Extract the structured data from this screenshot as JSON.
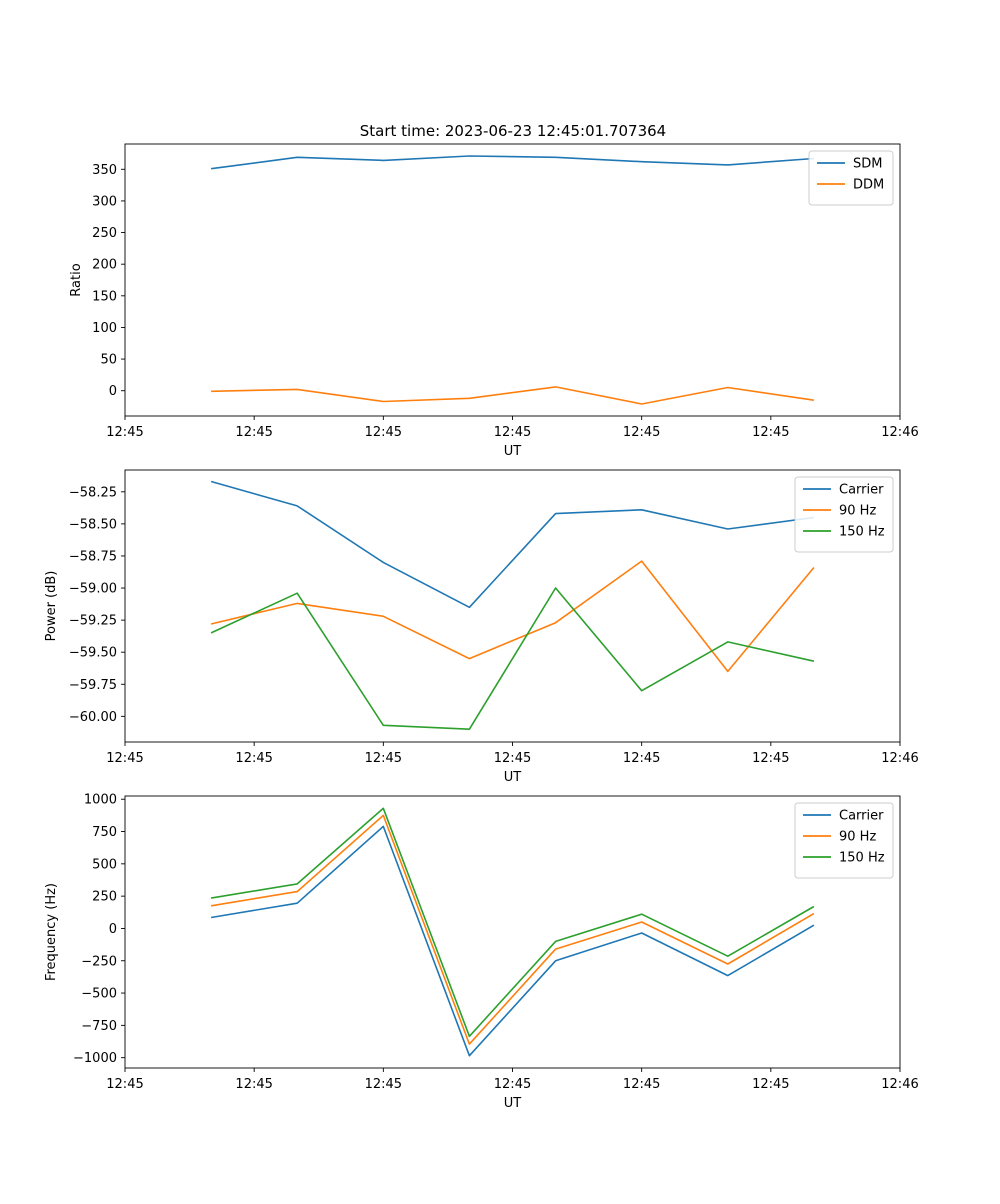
{
  "figure": {
    "title": "Start time: 2023-06-23 12:45:01.707364"
  },
  "chart_data": [
    {
      "type": "line",
      "xlabel": "UT",
      "ylabel": "Ratio",
      "xlim": [
        0,
        9
      ],
      "ylim": [
        -40,
        390
      ],
      "x": [
        1,
        2,
        3,
        4,
        5,
        6,
        7,
        8
      ],
      "xticks": [
        0,
        1.5,
        3,
        4.5,
        6,
        7.5,
        9
      ],
      "xtick_labels": [
        "12:45",
        "12:45",
        "12:45",
        "12:45",
        "12:45",
        "12:45",
        "12:46"
      ],
      "yticks": [
        0,
        50,
        100,
        150,
        200,
        250,
        300,
        350
      ],
      "ytick_labels": [
        "0",
        "50",
        "100",
        "150",
        "200",
        "250",
        "300",
        "350"
      ],
      "legend": "top-right",
      "series": [
        {
          "name": "SDM",
          "color": "#1f77b4",
          "values": [
            351,
            369,
            364,
            371,
            369,
            362,
            357,
            367
          ]
        },
        {
          "name": "DDM",
          "color": "#ff7f0e",
          "values": [
            -1,
            2,
            -17,
            -12,
            6,
            -21,
            5,
            -15
          ]
        }
      ]
    },
    {
      "type": "line",
      "xlabel": "UT",
      "ylabel": "Power (dB)",
      "xlim": [
        0,
        9
      ],
      "ylim": [
        -60.2,
        -58.08
      ],
      "x": [
        1,
        2,
        3,
        4,
        5,
        6,
        7,
        8
      ],
      "xticks": [
        0,
        1.5,
        3,
        4.5,
        6,
        7.5,
        9
      ],
      "xtick_labels": [
        "12:45",
        "12:45",
        "12:45",
        "12:45",
        "12:45",
        "12:45",
        "12:46"
      ],
      "yticks": [
        -60.0,
        -59.75,
        -59.5,
        -59.25,
        -59.0,
        -58.75,
        -58.5,
        -58.25
      ],
      "ytick_labels": [
        "−60.00",
        "−59.75",
        "−59.50",
        "−59.25",
        "−59.00",
        "−58.75",
        "−58.50",
        "−58.25"
      ],
      "legend": "top-right",
      "series": [
        {
          "name": "Carrier",
          "color": "#1f77b4",
          "values": [
            -58.17,
            -58.36,
            -58.8,
            -59.15,
            -58.42,
            -58.39,
            -58.54,
            -58.45
          ]
        },
        {
          "name": "90 Hz",
          "color": "#ff7f0e",
          "values": [
            -59.28,
            -59.12,
            -59.22,
            -59.55,
            -59.27,
            -58.79,
            -59.65,
            -58.84
          ]
        },
        {
          "name": "150 Hz",
          "color": "#2ca02c",
          "values": [
            -59.35,
            -59.04,
            -60.07,
            -60.1,
            -59.0,
            -59.8,
            -59.42,
            -59.57
          ]
        }
      ]
    },
    {
      "type": "line",
      "xlabel": "UT",
      "ylabel": "Frequency (Hz)",
      "xlim": [
        0,
        9
      ],
      "ylim": [
        -1080,
        1025
      ],
      "x": [
        1,
        2,
        3,
        4,
        5,
        6,
        7,
        8
      ],
      "xticks": [
        0,
        1.5,
        3,
        4.5,
        6,
        7.5,
        9
      ],
      "xtick_labels": [
        "12:45",
        "12:45",
        "12:45",
        "12:45",
        "12:45",
        "12:45",
        "12:46"
      ],
      "yticks": [
        -1000,
        -750,
        -500,
        -250,
        0,
        250,
        500,
        750,
        1000
      ],
      "ytick_labels": [
        "−1000",
        "−750",
        "−500",
        "−250",
        "0",
        "250",
        "500",
        "750",
        "1000"
      ],
      "legend": "top-right",
      "series": [
        {
          "name": "Carrier",
          "color": "#1f77b4",
          "values": [
            85,
            195,
            790,
            -985,
            -250,
            -35,
            -365,
            25
          ]
        },
        {
          "name": "90 Hz",
          "color": "#ff7f0e",
          "values": [
            175,
            285,
            875,
            -895,
            -160,
            50,
            -275,
            115
          ]
        },
        {
          "name": "150 Hz",
          "color": "#2ca02c",
          "values": [
            235,
            345,
            930,
            -835,
            -100,
            110,
            -215,
            170
          ]
        }
      ]
    }
  ]
}
